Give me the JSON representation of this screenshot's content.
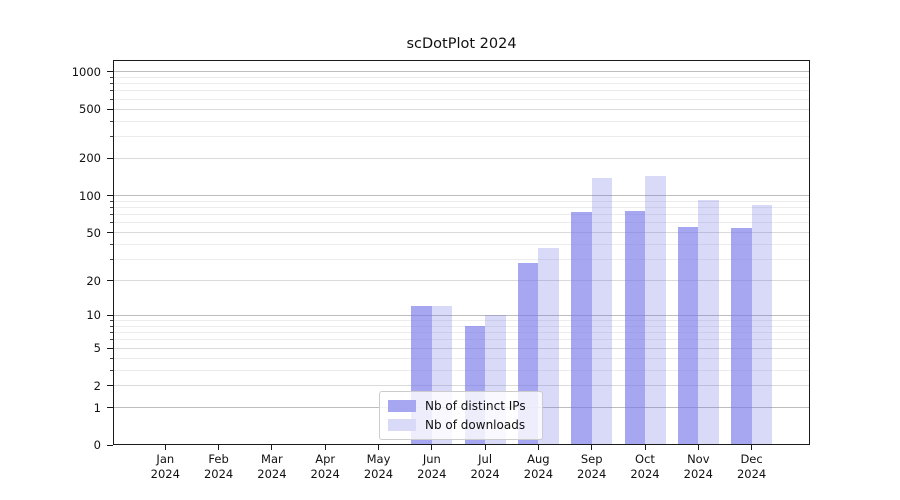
{
  "title": "scDotPlot 2024",
  "chart_data": {
    "type": "bar",
    "title": "scDotPlot 2024",
    "x_months": [
      "Jan",
      "Feb",
      "Mar",
      "Apr",
      "May",
      "Jun",
      "Jul",
      "Aug",
      "Sep",
      "Oct",
      "Nov",
      "Dec"
    ],
    "x_year": "2024",
    "series": [
      {
        "name": "Nb of distinct IPs",
        "color": "#a6a6f1",
        "color_rgba": "rgba(118,118,234,0.65)",
        "values": [
          0,
          0,
          0,
          0,
          0,
          12,
          8,
          28,
          74,
          75,
          56,
          55
        ]
      },
      {
        "name": "Nb of downloads",
        "color": "#d9d9f8",
        "color_rgba": "rgba(103,103,227,0.25)",
        "values": [
          0,
          0,
          0,
          0,
          0,
          12,
          10,
          37,
          140,
          145,
          93,
          84
        ]
      }
    ],
    "y_axis": {
      "scale": "log1p",
      "ticks_labeled": [
        0,
        1,
        2,
        5,
        10,
        20,
        50,
        100,
        200,
        500,
        1000
      ],
      "gridlines_major": [
        1,
        10,
        100,
        1000
      ],
      "gridlines_medium": [
        2,
        5,
        20,
        50,
        200,
        500
      ],
      "gridlines_minor": [
        3,
        4,
        6,
        7,
        8,
        9,
        30,
        40,
        60,
        70,
        80,
        90,
        300,
        400,
        600,
        700,
        800,
        900
      ],
      "ylim": [
        0,
        1243
      ]
    },
    "grid_colors": {
      "major": "#bdbdbd",
      "medium": "#dadada",
      "minor": "#ececec"
    },
    "legend_position": "lower center"
  }
}
